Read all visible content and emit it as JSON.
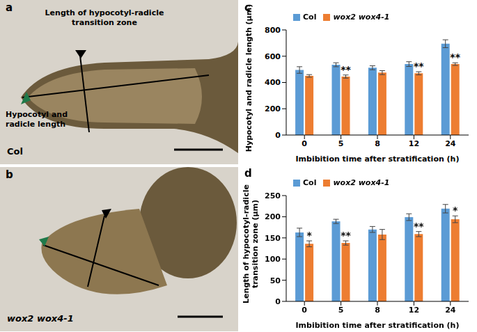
{
  "chart_data": [
    {
      "type": "bar",
      "panel": "c",
      "x_label": "Imbibition time after stratification (h)",
      "y_label": "Hypocotyl and radicle length (μm)",
      "categories": [
        "0",
        "5",
        "8",
        "12",
        "24"
      ],
      "series": [
        {
          "name": "Col",
          "color": "#5b9bd5",
          "values": [
            495,
            535,
            512,
            540,
            695
          ],
          "errors": [
            25,
            15,
            15,
            18,
            30
          ],
          "annotations": [
            null,
            null,
            null,
            null,
            null
          ]
        },
        {
          "name": "wox2 wox4-1",
          "color": "#ed7d31",
          "values": [
            450,
            445,
            475,
            470,
            540
          ],
          "errors": [
            10,
            12,
            15,
            12,
            10
          ],
          "annotations": [
            null,
            "**",
            null,
            "**",
            "**"
          ]
        }
      ],
      "ylim": [
        0,
        800
      ],
      "yticks": [
        0,
        200,
        400,
        600,
        800
      ],
      "legend": "top-left",
      "grid": false
    },
    {
      "type": "bar",
      "panel": "d",
      "x_label": "Imbibition time after stratification (h)",
      "y_label": "Length of hypocotyl-radicle transition zone (μm)",
      "categories": [
        "0",
        "5",
        "8",
        "12",
        "24"
      ],
      "series": [
        {
          "name": "Col",
          "color": "#5b9bd5",
          "values": [
            163,
            189,
            170,
            199,
            219
          ],
          "errors": [
            10,
            5,
            7,
            8,
            10
          ],
          "annotations": [
            null,
            null,
            null,
            null,
            null
          ]
        },
        {
          "name": "wox2 wox4-1",
          "color": "#ed7d31",
          "values": [
            136,
            138,
            158,
            159,
            194
          ],
          "errors": [
            7,
            5,
            12,
            6,
            8
          ],
          "annotations": [
            "*",
            "**",
            null,
            "**",
            "*"
          ]
        }
      ],
      "ylim": [
        0,
        250
      ],
      "yticks": [
        0,
        50,
        100,
        150,
        200,
        250
      ],
      "legend": "top-left",
      "grid": false
    }
  ],
  "images": [
    {
      "panel": "a",
      "label": "Col",
      "annotations": [
        "Length of hypocotyl-radicle transition zone",
        "Hypocotyl and radicle length"
      ]
    },
    {
      "panel": "b",
      "label": "wox2 wox4-1",
      "annotations": []
    }
  ]
}
